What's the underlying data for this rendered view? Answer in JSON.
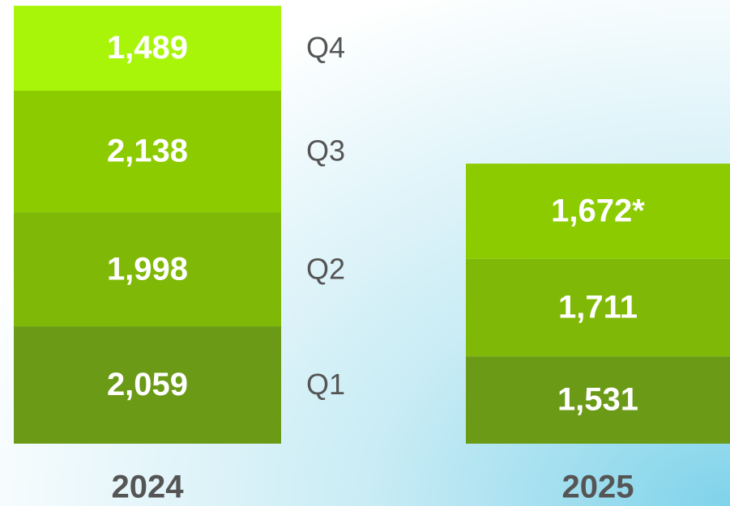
{
  "chart_data": {
    "type": "stacked_bar",
    "categories": [
      "2024",
      "2025"
    ],
    "series": [
      {
        "name": "Q1",
        "color": "#6a9a16",
        "values": [
          2059,
          1531
        ],
        "value_labels": [
          "2,059",
          "1,531"
        ]
      },
      {
        "name": "Q2",
        "color": "#80b808",
        "values": [
          1998,
          1711
        ],
        "value_labels": [
          "1,998",
          "1,711"
        ]
      },
      {
        "name": "Q3",
        "color": "#8ccb00",
        "values": [
          2138,
          1672
        ],
        "value_labels": [
          "2,138",
          "1,672*"
        ]
      },
      {
        "name": "Q4",
        "color": "#a8f50a",
        "values": [
          1489,
          null
        ],
        "value_labels": [
          "1,489",
          null
        ]
      }
    ],
    "ylim": [
      0,
      7700
    ]
  }
}
